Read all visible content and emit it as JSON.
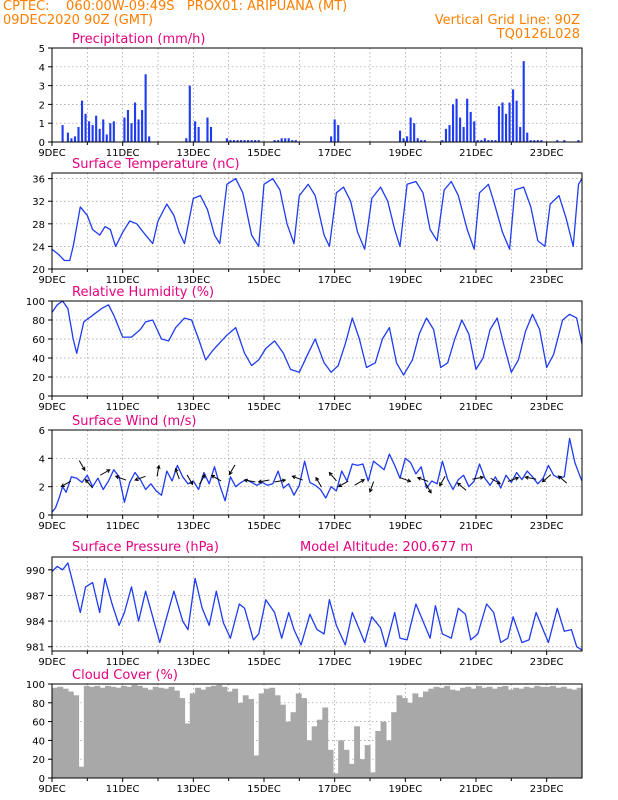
{
  "header": {
    "line1_left": "CPTEC:    060:00W-09:49S   PROX01: ARIPUANA (MT)",
    "line2_left": "09DEC2020 90Z (GMT)",
    "line2_right": "Vertical Grid Line: 90Z",
    "line3_right": "TQ0126L028"
  },
  "x_ticks": [
    "9DEC",
    "11DEC",
    "13DEC",
    "15DEC",
    "17DEC",
    "19DEC",
    "21DEC",
    "23DEC"
  ],
  "colors": {
    "header": "#ff7f00",
    "titles": "#e6007e",
    "series": "#1f3cf0",
    "cloud": "#a8a8a8"
  },
  "chart_data": [
    {
      "type": "bar",
      "title": "Precipitation (mm/h)",
      "xlim": [
        9,
        24
      ],
      "ylim": [
        0,
        5
      ],
      "yticks": [
        0,
        1,
        2,
        3,
        4,
        5
      ],
      "grid": true,
      "x": [
        9.3,
        9.45,
        9.55,
        9.65,
        9.75,
        9.85,
        9.95,
        10.05,
        10.15,
        10.25,
        10.35,
        10.45,
        10.55,
        10.65,
        10.75,
        11.05,
        11.15,
        11.25,
        11.35,
        11.45,
        11.55,
        11.65,
        11.75,
        12.8,
        12.9,
        13.05,
        13.15,
        13.4,
        13.5,
        13.95,
        14.05,
        14.15,
        14.25,
        14.35,
        14.45,
        14.55,
        14.65,
        14.75,
        14.85,
        15.3,
        15.4,
        15.5,
        15.6,
        15.7,
        15.8,
        15.9,
        16.9,
        17.0,
        17.1,
        18.85,
        18.95,
        19.05,
        19.15,
        19.25,
        19.35,
        19.45,
        19.55,
        20.05,
        20.15,
        20.25,
        20.35,
        20.45,
        20.55,
        20.65,
        20.75,
        20.85,
        20.95,
        21.05,
        21.15,
        21.25,
        21.35,
        21.45,
        21.55,
        21.65,
        21.75,
        21.85,
        21.95,
        22.05,
        22.15,
        22.25,
        22.35,
        22.45,
        22.55,
        22.65,
        22.75,
        22.85,
        23.3,
        23.5,
        23.9
      ],
      "values": [
        0.9,
        0.5,
        0.2,
        0.3,
        0.8,
        2.2,
        1.5,
        1.1,
        0.9,
        1.4,
        0.7,
        1.2,
        0.4,
        1.0,
        1.1,
        1.3,
        1.7,
        1.0,
        2.1,
        1.2,
        1.7,
        3.6,
        0.3,
        0.2,
        3.0,
        1.1,
        0.8,
        1.3,
        0.8,
        0.2,
        0.1,
        0.1,
        0.1,
        0.1,
        0.1,
        0.1,
        0.1,
        0.1,
        0.1,
        0.1,
        0.1,
        0.2,
        0.2,
        0.2,
        0.1,
        0.1,
        0.3,
        1.2,
        0.9,
        0.6,
        0.2,
        0.3,
        1.3,
        1.0,
        0.2,
        0.1,
        0.1,
        0.1,
        0.7,
        0.9,
        2.0,
        2.3,
        1.3,
        0.8,
        2.3,
        1.6,
        1.1,
        0.1,
        0.1,
        0.2,
        0.1,
        0.1,
        0.1,
        1.9,
        2.1,
        1.5,
        2.1,
        2.8,
        2.2,
        0.8,
        4.3,
        0.5,
        0.1,
        0.1,
        0.1,
        0.1,
        0.1,
        0.1,
        0.1
      ]
    },
    {
      "type": "line",
      "title": "Surface Temperature (nC)",
      "xlim": [
        9,
        24
      ],
      "ylim": [
        20,
        37
      ],
      "yticks": [
        20,
        24,
        28,
        32,
        36
      ],
      "grid": true,
      "x": [
        9.0,
        9.2,
        9.35,
        9.5,
        9.6,
        9.8,
        10.0,
        10.15,
        10.35,
        10.5,
        10.65,
        10.8,
        11.0,
        11.2,
        11.4,
        11.65,
        11.85,
        12.0,
        12.25,
        12.45,
        12.6,
        12.75,
        13.0,
        13.2,
        13.4,
        13.6,
        13.75,
        13.95,
        14.2,
        14.4,
        14.65,
        14.85,
        15.0,
        15.25,
        15.45,
        15.65,
        15.85,
        16.0,
        16.25,
        16.45,
        16.7,
        16.85,
        17.05,
        17.25,
        17.45,
        17.65,
        17.85,
        18.05,
        18.3,
        18.5,
        18.7,
        18.85,
        19.05,
        19.3,
        19.5,
        19.7,
        19.9,
        20.1,
        20.3,
        20.5,
        20.75,
        20.95,
        21.1,
        21.35,
        21.5,
        21.75,
        21.95,
        22.1,
        22.35,
        22.55,
        22.75,
        22.95,
        23.1,
        23.35,
        23.55,
        23.75,
        23.9,
        24.0
      ],
      "y": [
        23.5,
        22.5,
        21.5,
        21.5,
        24.0,
        31.0,
        29.5,
        27.0,
        26.0,
        27.5,
        27.0,
        24.0,
        26.5,
        28.5,
        28.0,
        26.0,
        24.5,
        28.5,
        31.5,
        29.5,
        26.5,
        24.5,
        32.5,
        33.0,
        30.5,
        26.0,
        24.5,
        35.0,
        36.0,
        33.5,
        26.0,
        24.0,
        35.0,
        36.0,
        34.0,
        28.0,
        24.5,
        33.0,
        35.0,
        33.0,
        26.0,
        24.0,
        33.5,
        34.5,
        32.0,
        26.5,
        23.5,
        32.5,
        34.5,
        32.0,
        27.0,
        24.0,
        35.0,
        35.5,
        33.5,
        27.0,
        25.0,
        34.0,
        35.5,
        33.0,
        27.0,
        23.5,
        33.5,
        35.0,
        32.0,
        26.5,
        23.5,
        34.0,
        34.5,
        31.0,
        25.0,
        24.0,
        31.5,
        33.0,
        29.0,
        24.0,
        35.0,
        36.0
      ]
    },
    {
      "type": "line",
      "title": "Relative Humidity (%)",
      "xlim": [
        9,
        24
      ],
      "ylim": [
        0,
        100
      ],
      "yticks": [
        0,
        20,
        40,
        60,
        80,
        100
      ],
      "grid": true,
      "x": [
        9.0,
        9.15,
        9.3,
        9.45,
        9.6,
        9.7,
        9.9,
        10.15,
        10.4,
        10.6,
        10.75,
        11.0,
        11.25,
        11.5,
        11.65,
        11.85,
        12.1,
        12.3,
        12.5,
        12.75,
        12.95,
        13.15,
        13.35,
        13.55,
        13.75,
        13.95,
        14.2,
        14.45,
        14.65,
        14.85,
        15.05,
        15.3,
        15.55,
        15.75,
        16.0,
        16.25,
        16.45,
        16.7,
        16.9,
        17.1,
        17.3,
        17.5,
        17.7,
        17.9,
        18.15,
        18.35,
        18.55,
        18.75,
        18.95,
        19.2,
        19.4,
        19.6,
        19.8,
        20.0,
        20.2,
        20.4,
        20.6,
        20.8,
        21.0,
        21.2,
        21.4,
        21.6,
        21.8,
        22.0,
        22.2,
        22.4,
        22.6,
        22.8,
        23.0,
        23.2,
        23.45,
        23.65,
        23.85,
        24.0
      ],
      "y": [
        88,
        96,
        100,
        92,
        60,
        45,
        78,
        85,
        92,
        96,
        85,
        62,
        62,
        70,
        78,
        80,
        60,
        58,
        72,
        82,
        80,
        60,
        38,
        48,
        56,
        64,
        72,
        45,
        32,
        38,
        50,
        58,
        45,
        28,
        25,
        45,
        60,
        35,
        25,
        32,
        55,
        82,
        60,
        30,
        35,
        60,
        72,
        35,
        22,
        38,
        66,
        82,
        70,
        30,
        35,
        60,
        80,
        65,
        28,
        40,
        70,
        82,
        52,
        25,
        38,
        68,
        86,
        70,
        30,
        44,
        80,
        86,
        82,
        55
      ]
    },
    {
      "type": "line",
      "title": "Surface Wind (m/s)",
      "xlim": [
        9,
        24
      ],
      "ylim": [
        0,
        6
      ],
      "yticks": [
        0,
        2,
        4,
        6
      ],
      "grid": true,
      "x": [
        9.0,
        9.1,
        9.2,
        9.3,
        9.4,
        9.55,
        9.7,
        9.85,
        10.0,
        10.15,
        10.3,
        10.45,
        10.6,
        10.75,
        10.9,
        11.05,
        11.2,
        11.35,
        11.5,
        11.65,
        11.8,
        11.95,
        12.1,
        12.25,
        12.4,
        12.55,
        12.7,
        12.85,
        13.0,
        13.15,
        13.3,
        13.45,
        13.6,
        13.75,
        13.9,
        14.05,
        14.2,
        14.35,
        14.5,
        14.65,
        14.8,
        14.95,
        15.1,
        15.25,
        15.4,
        15.55,
        15.7,
        15.85,
        16.0,
        16.15,
        16.3,
        16.45,
        16.6,
        16.75,
        16.9,
        17.05,
        17.2,
        17.35,
        17.5,
        17.65,
        17.8,
        17.95,
        18.1,
        18.25,
        18.4,
        18.55,
        18.7,
        18.85,
        19.0,
        19.15,
        19.3,
        19.45,
        19.6,
        19.75,
        19.9,
        20.05,
        20.2,
        20.35,
        20.5,
        20.65,
        20.8,
        20.95,
        21.1,
        21.25,
        21.4,
        21.55,
        21.7,
        21.85,
        22.0,
        22.15,
        22.3,
        22.45,
        22.6,
        22.75,
        22.9,
        23.05,
        23.2,
        23.35,
        23.5,
        23.65,
        23.8,
        23.95,
        24.0
      ],
      "y": [
        0.2,
        0.5,
        1.2,
        2.0,
        1.6,
        2.7,
        2.6,
        2.3,
        2.8,
        2.0,
        2.6,
        1.8,
        2.4,
        3.2,
        2.7,
        0.9,
        2.3,
        3.0,
        2.5,
        1.8,
        2.2,
        1.7,
        1.4,
        3.1,
        2.4,
        3.5,
        2.7,
        2.2,
        2.4,
        1.8,
        3.0,
        2.2,
        3.4,
        2.1,
        1.0,
        2.7,
        2.0,
        2.3,
        2.5,
        2.3,
        2.1,
        2.3,
        2.1,
        2.2,
        3.1,
        1.9,
        2.2,
        1.4,
        2.1,
        3.8,
        2.3,
        2.1,
        1.8,
        1.2,
        2.0,
        1.7,
        3.1,
        2.4,
        3.6,
        3.5,
        3.6,
        2.4,
        3.8,
        3.5,
        3.2,
        4.3,
        3.5,
        2.6,
        4.0,
        3.7,
        2.9,
        3.4,
        1.9,
        2.4,
        2.2,
        3.8,
        2.5,
        1.8,
        2.5,
        2.8,
        2.0,
        2.4,
        3.6,
        2.6,
        2.1,
        2.7,
        1.9,
        2.8,
        2.3,
        3.0,
        2.5,
        3.1,
        2.7,
        2.2,
        2.6,
        3.5,
        2.8,
        2.6,
        2.7,
        5.4,
        3.7,
        2.7,
        2.4
      ],
      "vectors": [
        {
          "x": 9.4,
          "y": 2.2,
          "angle": 210
        },
        {
          "x": 9.85,
          "y": 3.5,
          "angle": 300
        },
        {
          "x": 10.05,
          "y": 2.2,
          "angle": 130
        },
        {
          "x": 10.5,
          "y": 3.0,
          "angle": 30
        },
        {
          "x": 10.95,
          "y": 2.6,
          "angle": 160
        },
        {
          "x": 11.5,
          "y": 2.6,
          "angle": 200
        },
        {
          "x": 12.0,
          "y": 3.1,
          "angle": 80
        },
        {
          "x": 12.55,
          "y": 2.9,
          "angle": 110
        },
        {
          "x": 12.9,
          "y": 2.5,
          "angle": 300
        },
        {
          "x": 13.25,
          "y": 2.5,
          "angle": 60
        },
        {
          "x": 13.65,
          "y": 2.6,
          "angle": 150
        },
        {
          "x": 14.1,
          "y": 3.2,
          "angle": 240
        },
        {
          "x": 14.6,
          "y": 2.4,
          "angle": 170
        },
        {
          "x": 15.0,
          "y": 2.4,
          "angle": 190
        },
        {
          "x": 15.45,
          "y": 2.4,
          "angle": 10
        },
        {
          "x": 15.95,
          "y": 2.6,
          "angle": 160
        },
        {
          "x": 16.55,
          "y": 2.3,
          "angle": 120
        },
        {
          "x": 16.95,
          "y": 2.7,
          "angle": 130
        },
        {
          "x": 17.25,
          "y": 2.2,
          "angle": 210
        },
        {
          "x": 17.7,
          "y": 2.3,
          "angle": 30
        },
        {
          "x": 18.05,
          "y": 2.0,
          "angle": 250
        },
        {
          "x": 19.0,
          "y": 2.5,
          "angle": 340
        },
        {
          "x": 19.5,
          "y": 2.5,
          "angle": 160
        },
        {
          "x": 19.65,
          "y": 1.9,
          "angle": 300
        },
        {
          "x": 20.05,
          "y": 2.4,
          "angle": 240
        },
        {
          "x": 20.6,
          "y": 2.0,
          "angle": 140
        },
        {
          "x": 21.05,
          "y": 2.6,
          "angle": 10
        },
        {
          "x": 21.55,
          "y": 2.4,
          "angle": 330
        },
        {
          "x": 22.05,
          "y": 2.5,
          "angle": 20
        },
        {
          "x": 22.55,
          "y": 2.6,
          "angle": 170
        },
        {
          "x": 23.0,
          "y": 2.6,
          "angle": 220
        },
        {
          "x": 23.45,
          "y": 2.5,
          "angle": 140
        }
      ]
    },
    {
      "type": "line",
      "title": "Surface Pressure (hPa)",
      "annotation": "Model Altitude: 200.677 m",
      "xlim": [
        9,
        24
      ],
      "ylim": [
        980.5,
        991.5
      ],
      "yticks": [
        981,
        984,
        987,
        990
      ],
      "grid": true,
      "x": [
        9.0,
        9.15,
        9.3,
        9.45,
        9.65,
        9.8,
        9.95,
        10.15,
        10.35,
        10.5,
        10.7,
        10.9,
        11.05,
        11.25,
        11.45,
        11.65,
        11.85,
        12.05,
        12.25,
        12.45,
        12.7,
        12.85,
        13.05,
        13.25,
        13.45,
        13.65,
        13.85,
        14.05,
        14.3,
        14.45,
        14.7,
        14.85,
        15.05,
        15.3,
        15.5,
        15.7,
        15.85,
        16.05,
        16.3,
        16.5,
        16.7,
        16.85,
        17.05,
        17.3,
        17.5,
        17.7,
        17.85,
        18.05,
        18.3,
        18.45,
        18.7,
        18.85,
        19.05,
        19.3,
        19.5,
        19.7,
        19.85,
        20.05,
        20.3,
        20.5,
        20.7,
        20.85,
        21.05,
        21.3,
        21.5,
        21.7,
        21.9,
        22.05,
        22.3,
        22.5,
        22.7,
        22.9,
        23.05,
        23.3,
        23.5,
        23.7,
        23.85,
        24.0
      ],
      "y": [
        989.8,
        990.4,
        990.0,
        990.8,
        987.5,
        985.0,
        988.0,
        988.5,
        985.0,
        989.0,
        986.0,
        983.5,
        985.0,
        988.0,
        984.0,
        987.5,
        984.5,
        981.5,
        984.5,
        987.5,
        984.0,
        983.0,
        989.0,
        985.5,
        983.5,
        987.5,
        983.8,
        982.0,
        986.0,
        985.5,
        981.8,
        982.5,
        986.5,
        985.0,
        982.0,
        985.0,
        983.0,
        981.2,
        984.8,
        983.0,
        982.5,
        986.5,
        983.5,
        981.2,
        985.0,
        983.0,
        981.5,
        984.5,
        983.2,
        981.0,
        985.0,
        982.0,
        981.8,
        986.0,
        984.0,
        982.0,
        985.8,
        982.5,
        982.0,
        985.5,
        984.8,
        981.8,
        982.5,
        986.0,
        985.0,
        981.5,
        982.0,
        984.5,
        981.5,
        981.8,
        985.0,
        983.0,
        981.5,
        985.5,
        982.8,
        983.0,
        981.0,
        980.6
      ]
    },
    {
      "type": "bar",
      "title": "Cloud Cover (%)",
      "xlim": [
        9,
        24
      ],
      "ylim": [
        0,
        100
      ],
      "yticks": [
        0,
        20,
        40,
        60,
        80,
        100
      ],
      "grid": true,
      "x": [
        9.0,
        9.15,
        9.3,
        9.45,
        9.6,
        9.75,
        9.9,
        10.05,
        10.2,
        10.35,
        10.5,
        10.65,
        10.8,
        10.95,
        11.1,
        11.25,
        11.4,
        11.55,
        11.7,
        11.85,
        12.0,
        12.15,
        12.3,
        12.45,
        12.6,
        12.75,
        12.9,
        13.05,
        13.2,
        13.35,
        13.5,
        13.65,
        13.8,
        13.95,
        14.1,
        14.25,
        14.4,
        14.55,
        14.7,
        14.85,
        15.0,
        15.15,
        15.3,
        15.45,
        15.6,
        15.75,
        15.9,
        16.05,
        16.2,
        16.35,
        16.5,
        16.65,
        16.8,
        16.95,
        17.1,
        17.25,
        17.4,
        17.55,
        17.7,
        17.85,
        18.0,
        18.15,
        18.3,
        18.45,
        18.6,
        18.75,
        18.9,
        19.05,
        19.2,
        19.35,
        19.5,
        19.65,
        19.8,
        19.95,
        20.1,
        20.25,
        20.4,
        20.55,
        20.7,
        20.85,
        21.0,
        21.15,
        21.3,
        21.45,
        21.6,
        21.75,
        21.9,
        22.05,
        22.2,
        22.35,
        22.5,
        22.65,
        22.8,
        22.95,
        23.1,
        23.25,
        23.4,
        23.55,
        23.7,
        23.85
      ],
      "values": [
        96,
        97,
        95,
        92,
        88,
        12,
        98,
        97,
        98,
        96,
        98,
        97,
        96,
        98,
        97,
        99,
        98,
        96,
        94,
        97,
        96,
        95,
        97,
        93,
        85,
        58,
        90,
        96,
        94,
        97,
        98,
        99,
        97,
        92,
        95,
        80,
        88,
        84,
        24,
        90,
        95,
        96,
        88,
        78,
        60,
        70,
        90,
        85,
        40,
        55,
        62,
        75,
        30,
        5,
        40,
        30,
        15,
        55,
        20,
        35,
        6,
        50,
        60,
        40,
        70,
        88,
        85,
        80,
        90,
        86,
        92,
        95,
        97,
        96,
        98,
        94,
        93,
        96,
        97,
        95,
        98,
        96,
        97,
        95,
        97,
        98,
        94,
        96,
        95,
        97,
        96,
        98,
        97,
        97,
        98,
        96,
        97,
        95,
        94,
        96
      ]
    }
  ]
}
